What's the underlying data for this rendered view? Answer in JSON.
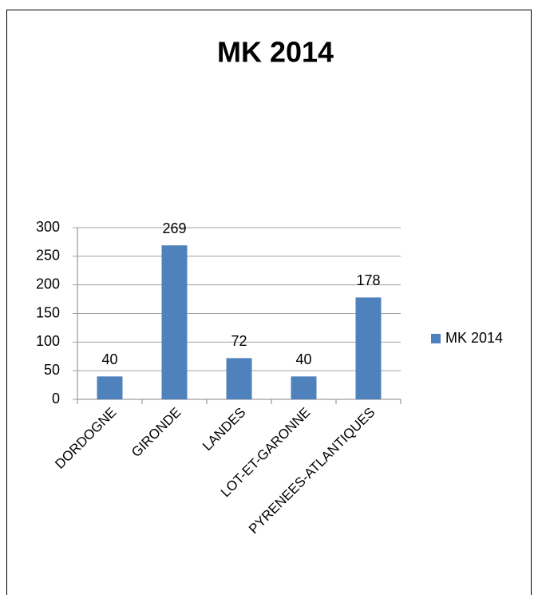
{
  "chart_data": {
    "type": "bar",
    "title": "MK 2014",
    "categories": [
      "DORDOGNE",
      "GIRONDE",
      "LANDES",
      "LOT-ET-GARONNE",
      "PYRENEES-ATLANTIQUES"
    ],
    "series": [
      {
        "name": "MK 2014",
        "color": "#4f81bd",
        "values": [
          40,
          269,
          72,
          40,
          178
        ]
      }
    ],
    "ylim": [
      0,
      300
    ],
    "yticks": [
      0,
      50,
      100,
      150,
      200,
      250,
      300
    ],
    "grid": true,
    "legend": "right"
  }
}
